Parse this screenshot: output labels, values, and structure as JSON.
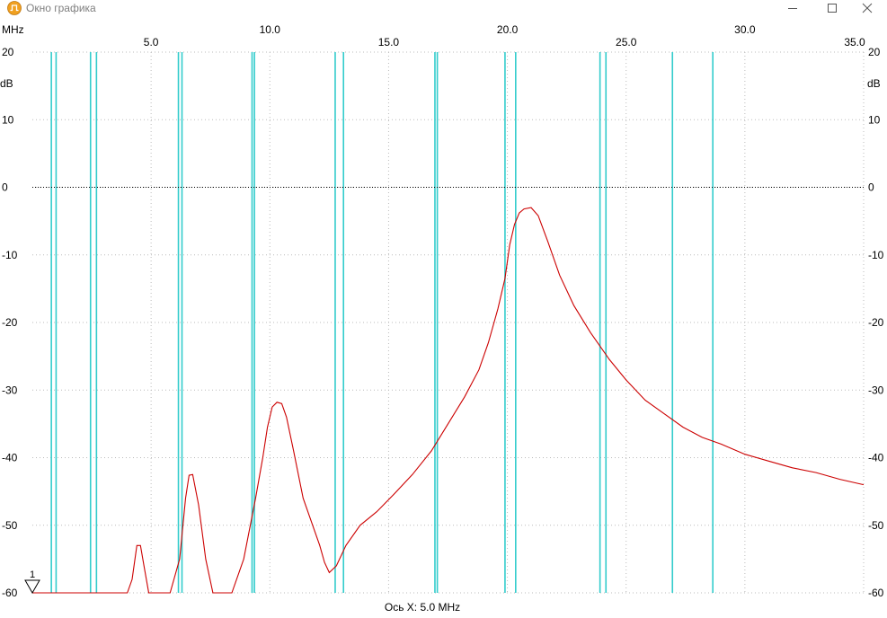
{
  "window": {
    "title": "Окно графика",
    "icons": {
      "app": "oscilloscope-app-icon",
      "minimize": "minimize-icon",
      "maximize": "maximize-icon",
      "close": "close-icon"
    }
  },
  "chart_data": {
    "type": "line",
    "title": "",
    "x_unit_label": "MHz",
    "y_unit_label": "dB",
    "xlabel": "Ось X: 5.0 MHz",
    "xlim": [
      0,
      35
    ],
    "ylim": [
      -60,
      20
    ],
    "x_ticks": [
      "5.0",
      "10.0",
      "15.0",
      "20.0",
      "25.0",
      "30.0",
      "35.0"
    ],
    "y_ticks": [
      "20",
      "10",
      "0",
      "-10",
      "-20",
      "-30",
      "-40",
      "-50",
      "-60"
    ],
    "reference_line_y": 0,
    "marker_label": "1",
    "grid": true,
    "colors": {
      "trace": "#cc0000",
      "markers": "#33cccc",
      "grid": "#bbbbbb",
      "reference": "#000000"
    },
    "vertical_markers_mhz": [
      0.8,
      1.0,
      2.45,
      2.7,
      6.15,
      6.3,
      9.25,
      9.35,
      12.75,
      13.1,
      16.95,
      17.05,
      19.9,
      20.35,
      23.9,
      24.15,
      26.95,
      28.65
    ],
    "series": [
      {
        "x": [
          0.0,
          4.0,
          4.2,
          4.4,
          4.55,
          4.7,
          4.9,
          5.2,
          5.8,
          6.2,
          6.45,
          6.6,
          6.75,
          7.0,
          7.3,
          7.6,
          8.0,
          8.4,
          8.9,
          9.4,
          9.7,
          9.9,
          10.1,
          10.3,
          10.5,
          10.7,
          11.0,
          11.4,
          11.8,
          12.1,
          12.3,
          12.5,
          12.8,
          13.2,
          13.8,
          14.5,
          15.2,
          16.0,
          16.8,
          17.5,
          18.2,
          18.8,
          19.2,
          19.6,
          19.9,
          20.1,
          20.3,
          20.5,
          20.7,
          21.0,
          21.3,
          21.7,
          22.2,
          22.8,
          23.5,
          24.3,
          25.0,
          25.8,
          26.6,
          27.4,
          28.2,
          29.0,
          30.0,
          31.0,
          32.0,
          33.0,
          34.0,
          35.0
        ],
        "y": [
          -60,
          -60,
          -58,
          -53,
          -53,
          -56,
          -60,
          -60,
          -60,
          -55,
          -46,
          -42.6,
          -42.5,
          -47,
          -55,
          -60,
          -60,
          -60,
          -55,
          -46,
          -40,
          -35.5,
          -32.5,
          -31.8,
          -32,
          -34,
          -39,
          -46,
          -50,
          -53,
          -55.5,
          -57,
          -56,
          -53,
          -50,
          -48,
          -45.5,
          -42.5,
          -39,
          -35,
          -31,
          -27,
          -23,
          -18,
          -13.5,
          -8.5,
          -5.5,
          -3.8,
          -3.2,
          -3.0,
          -4.2,
          -8,
          -13,
          -17.5,
          -21.5,
          -25.5,
          -28.5,
          -31.5,
          -33.5,
          -35.5,
          -37,
          -38,
          -39.5,
          -40.5,
          -41.5,
          -42.2,
          -43.2,
          -44
        ]
      }
    ]
  }
}
